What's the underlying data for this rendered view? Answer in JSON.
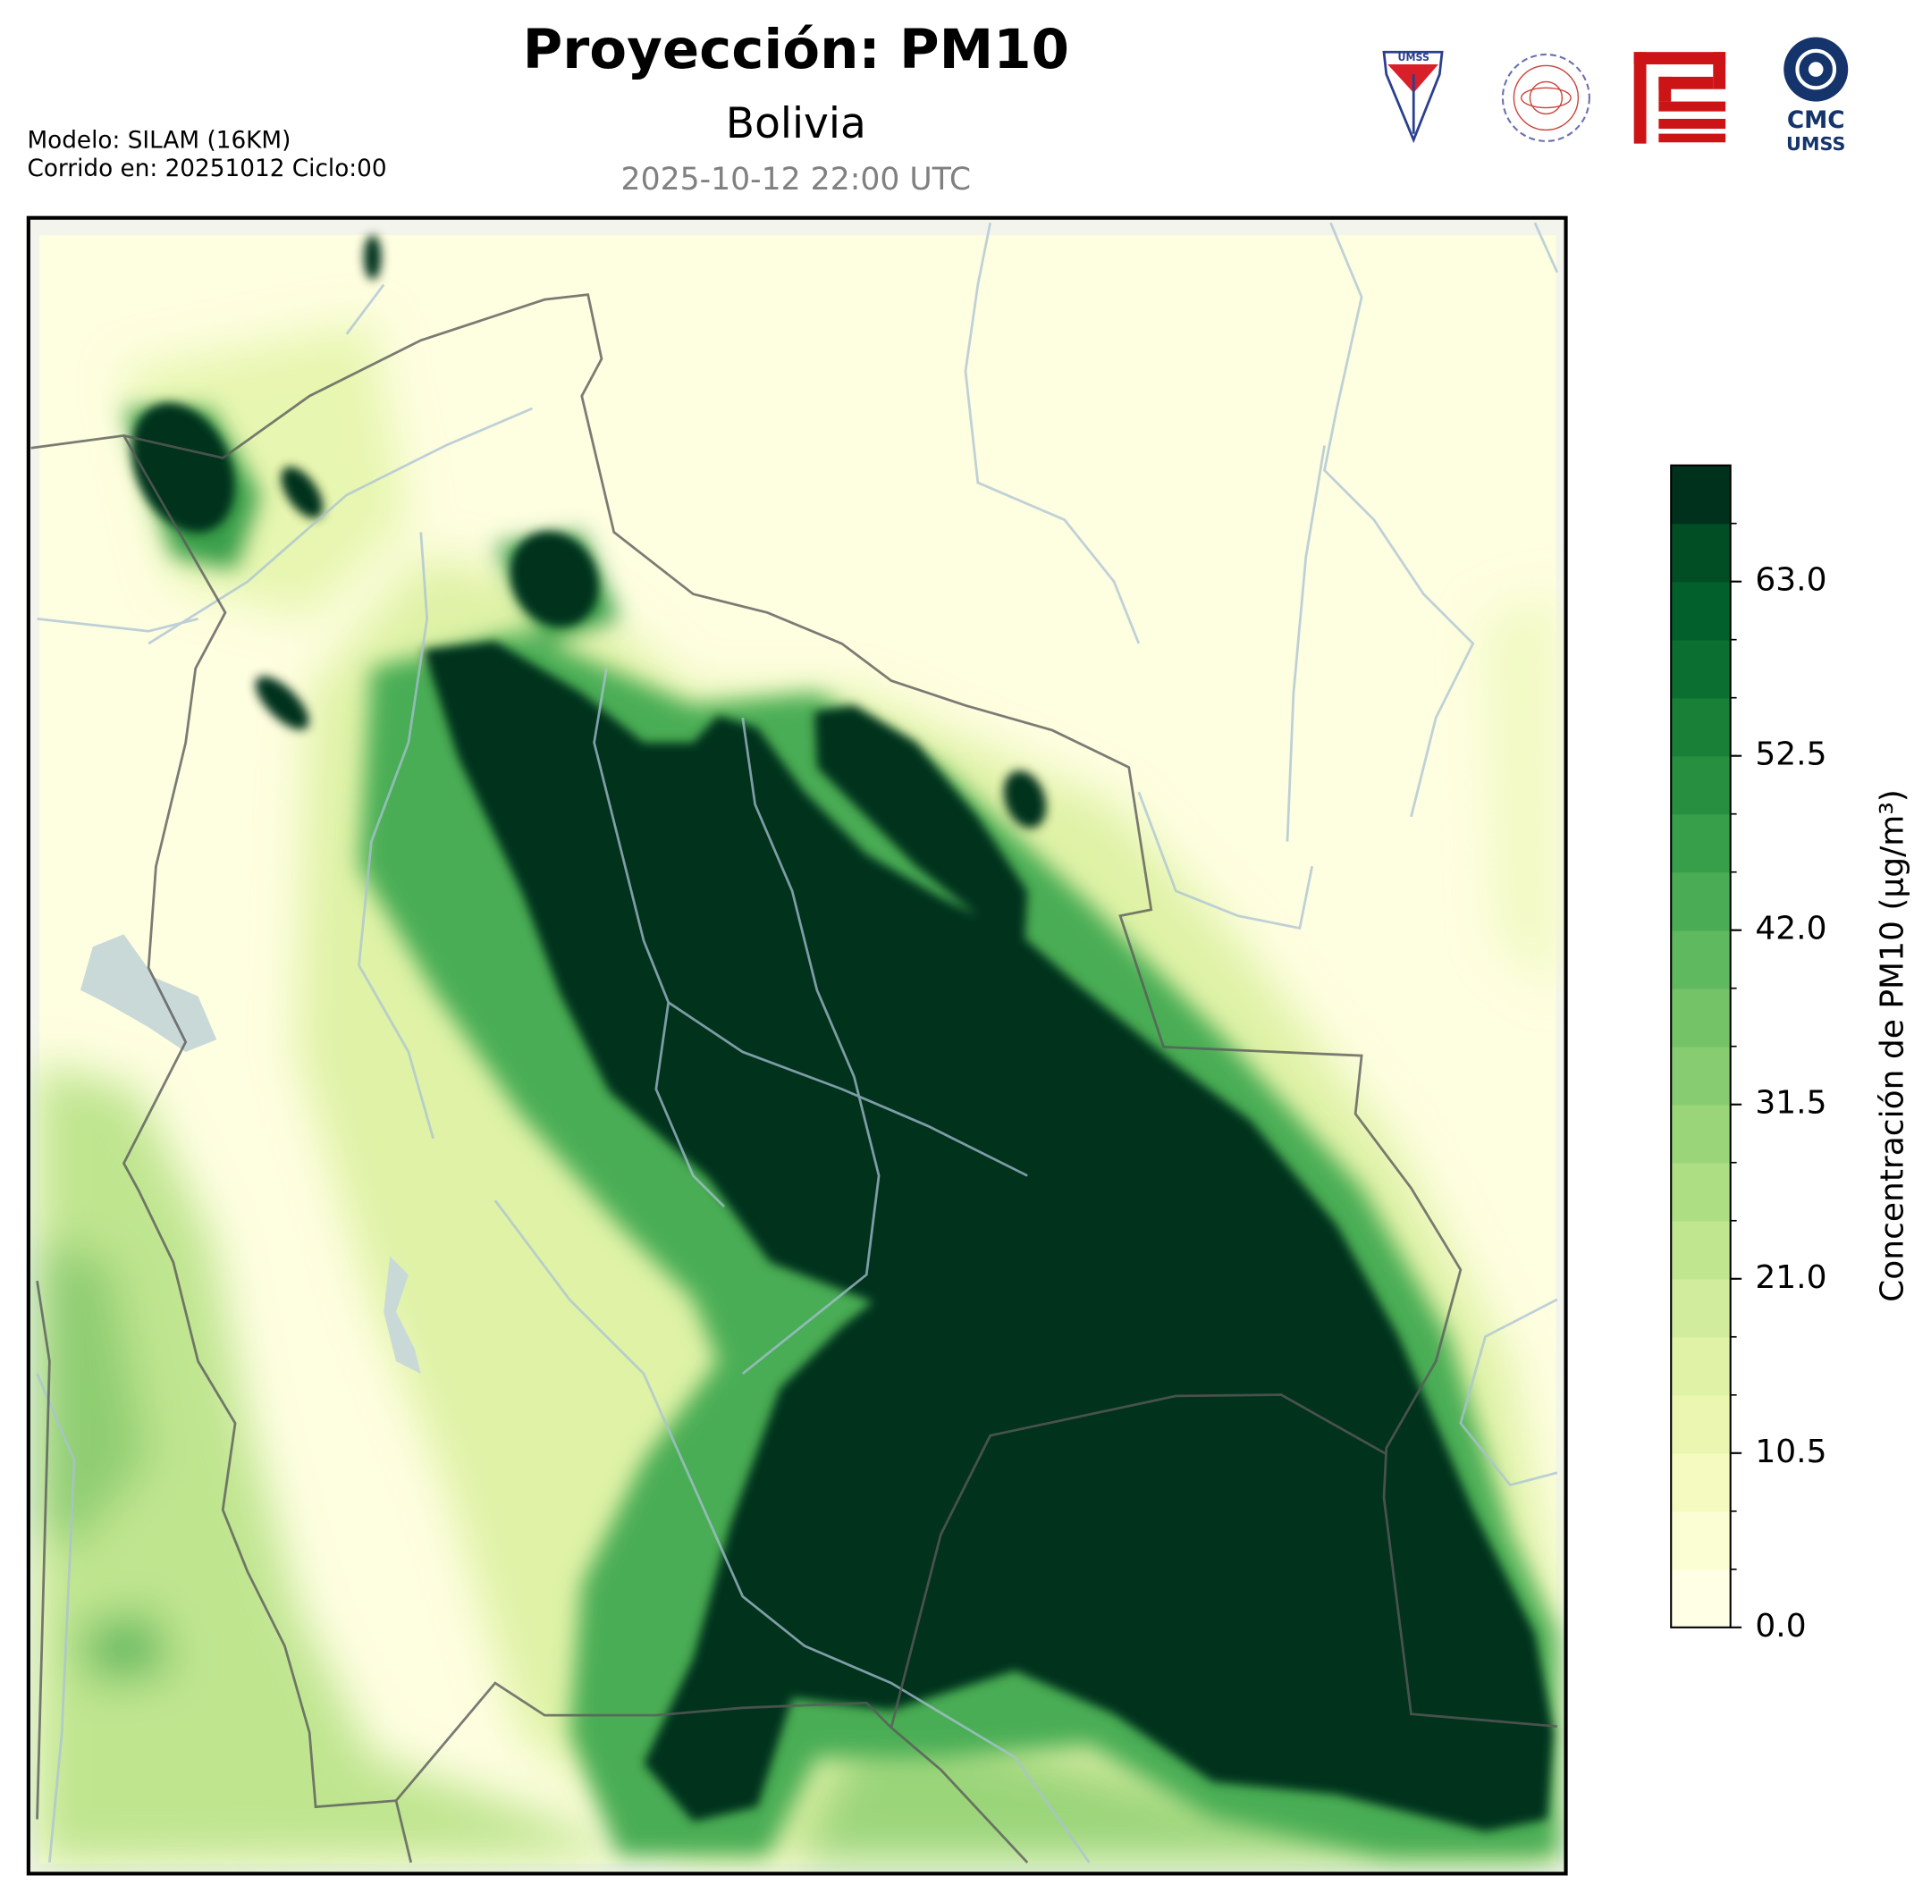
{
  "header": {
    "title": "Proyección: PM10",
    "subtitle": "Bolivia",
    "valid_time": "2025-10-12 22:00 UTC",
    "model": "Modelo: SILAM (16KM)",
    "run": "Corrido en: 20251012 Ciclo:00"
  },
  "logos": {
    "shield_text": "UMSS",
    "cmc_text": "CMC",
    "cmc_sub": "UMSS"
  },
  "colorbar": {
    "label": "Concentración de PM10 (μg/m³)",
    "range": [
      0,
      70
    ],
    "ticks": [
      {
        "value": 0,
        "label": "0.0"
      },
      {
        "value": 10.5,
        "label": "10.5"
      },
      {
        "value": 21,
        "label": "21.0"
      },
      {
        "value": 31.5,
        "label": "31.5"
      },
      {
        "value": 42,
        "label": "42.0"
      },
      {
        "value": 52.5,
        "label": "52.5"
      },
      {
        "value": 63,
        "label": "63.0"
      }
    ],
    "colors": [
      "#ffffe5",
      "#fbfdd2",
      "#f5fbc0",
      "#ebf7b1",
      "#dff2a6",
      "#d1ec9c",
      "#c1e690",
      "#aede84",
      "#9bd57a",
      "#87cc70",
      "#74c367",
      "#5fb95e",
      "#4aad55",
      "#379e4a",
      "#278f40",
      "#188037",
      "#0a6f30",
      "#02602c",
      "#014e25",
      "#00311d"
    ]
  }
}
